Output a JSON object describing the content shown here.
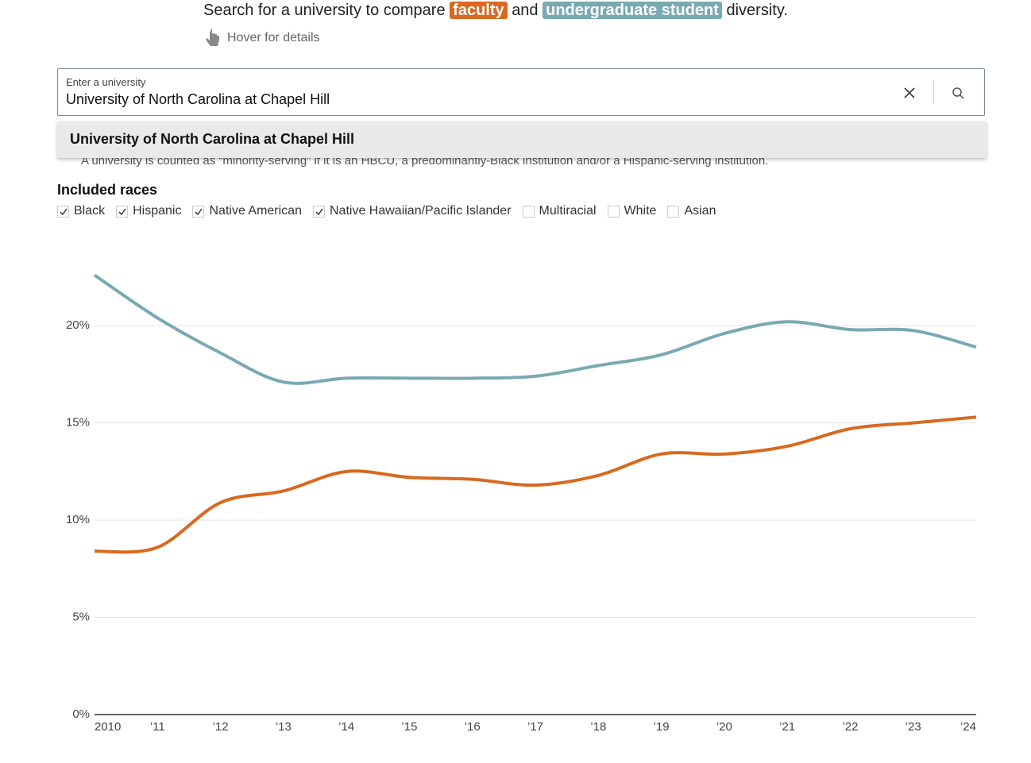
{
  "header": {
    "intro_before": "Search for a university to compare",
    "intro_and": "and",
    "intro_after": "diversity.",
    "hover_hint": "Hover for details"
  },
  "search": {
    "label": "Enter a university",
    "value": "University of North Carolina at Chapel Hill"
  },
  "dropdown": {
    "options": [
      "University of North Carolina at Chapel Hill"
    ]
  },
  "note": "A university is counted as “minority-serving” if it is an HBCU, a predominantly-Black institution and/or a Hispanic-serving institution.",
  "races": {
    "title": "Included races",
    "items": [
      {
        "label": "Black",
        "checked": true
      },
      {
        "label": "Hispanic",
        "checked": true
      },
      {
        "label": "Native American",
        "checked": true
      },
      {
        "label": "Native Hawaiian/Pacific Islander",
        "checked": true
      },
      {
        "label": "Multiracial",
        "checked": false
      },
      {
        "label": "White",
        "checked": false
      },
      {
        "label": "Asian",
        "checked": false
      }
    ]
  },
  "chart_data": {
    "type": "line",
    "categories": [
      "2010",
      "’11",
      "’12",
      "’13",
      "’14",
      "’15",
      "’16",
      "’17",
      "’18",
      "’19",
      "’20",
      "’21",
      "’22",
      "’23",
      "’24"
    ],
    "series": [
      {
        "name": "faculty",
        "color": "#d8691f",
        "values": [
          8.4,
          8.6,
          10.9,
          11.5,
          12.5,
          12.2,
          12.1,
          11.8,
          12.3,
          13.4,
          13.4,
          13.8,
          14.7,
          15.0,
          15.3
        ]
      },
      {
        "name": "undergraduate student",
        "color": "#79a9b3",
        "values": [
          22.6,
          20.4,
          18.6,
          17.1,
          17.3,
          17.3,
          17.3,
          17.4,
          17.95,
          18.5,
          19.6,
          20.2,
          19.8,
          19.75,
          18.9
        ]
      }
    ],
    "ylim": [
      0,
      24.5
    ],
    "yticks": [
      {
        "value": 0,
        "label": "0%"
      },
      {
        "value": 5,
        "label": "5%"
      },
      {
        "value": 10,
        "label": "10%"
      },
      {
        "value": 15,
        "label": "15%"
      },
      {
        "value": 20,
        "label": "20%"
      }
    ],
    "grid": true
  }
}
